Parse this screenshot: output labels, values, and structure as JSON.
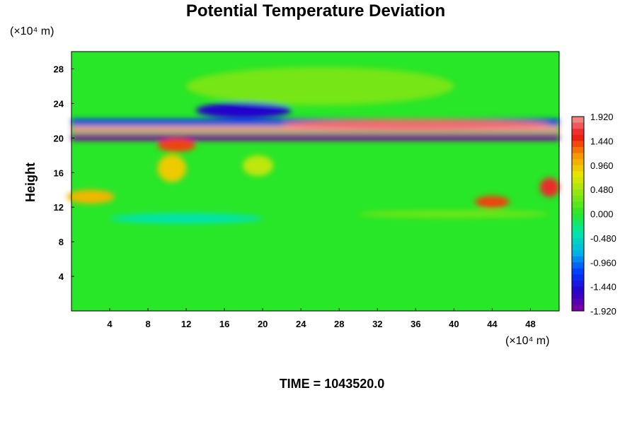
{
  "chart_data": {
    "type": "heatmap",
    "title": "Potential Temperature Deviation",
    "ylabel": "Height",
    "y_unit": "(×10⁴ m)",
    "x_unit": "(×10⁴ m)",
    "xlim": [
      0,
      51
    ],
    "ylim": [
      0,
      30
    ],
    "x_ticks": [
      "4",
      "8",
      "12",
      "16",
      "20",
      "24",
      "28",
      "32",
      "36",
      "40",
      "44",
      "48"
    ],
    "x_tick_values": [
      4,
      8,
      12,
      16,
      20,
      24,
      28,
      32,
      36,
      40,
      44,
      48
    ],
    "y_ticks": [
      "4",
      "8",
      "12",
      "16",
      "20",
      "24",
      "28"
    ],
    "y_tick_values": [
      4,
      8,
      12,
      16,
      20,
      24,
      28
    ],
    "colorbar": {
      "min": -1.92,
      "max": 1.92,
      "labels": [
        "1.920",
        "1.440",
        "0.960",
        "0.480",
        "0.000",
        "-0.480",
        "-0.960",
        "-1.440",
        "-1.920"
      ],
      "label_values": [
        1.92,
        1.44,
        0.96,
        0.48,
        0.0,
        -0.48,
        -0.96,
        -1.44,
        -1.92
      ]
    },
    "background_value": 0.0,
    "features": [
      {
        "kind": "band",
        "x0": 0,
        "x1": 51,
        "y0": 20.6,
        "y1": 21.4,
        "value": 1.92
      },
      {
        "kind": "band",
        "x0": 0,
        "x1": 51,
        "y0": 19.7,
        "y1": 20.4,
        "value": -1.92
      },
      {
        "kind": "band",
        "x0": 0,
        "x1": 51,
        "y0": 21.5,
        "y1": 22.2,
        "value": -1.2
      },
      {
        "kind": "blob",
        "x": 18,
        "y": 23.2,
        "rx": 5,
        "ry": 0.9,
        "value": -1.5
      },
      {
        "kind": "blob",
        "x": 36,
        "y": 21.6,
        "rx": 14,
        "ry": 0.6,
        "value": 1.8
      },
      {
        "kind": "blob",
        "x": 11,
        "y": 19.2,
        "rx": 2,
        "ry": 0.8,
        "value": 1.4
      },
      {
        "kind": "blob",
        "x": 10.5,
        "y": 16.5,
        "rx": 1.5,
        "ry": 1.6,
        "value": 0.9
      },
      {
        "kind": "blob",
        "x": 19.5,
        "y": 16.8,
        "rx": 1.6,
        "ry": 1.2,
        "value": 0.6
      },
      {
        "kind": "blob",
        "x": 2,
        "y": 13.2,
        "rx": 2.5,
        "ry": 0.8,
        "value": 1.0
      },
      {
        "kind": "blob",
        "x": 44,
        "y": 12.6,
        "rx": 1.8,
        "ry": 0.7,
        "value": 1.4
      },
      {
        "kind": "blob",
        "x": 50,
        "y": 14.3,
        "rx": 1,
        "ry": 1.1,
        "value": 1.6
      },
      {
        "kind": "blob",
        "x": 26,
        "y": 26,
        "rx": 14,
        "ry": 2.2,
        "value": 0.3
      },
      {
        "kind": "blob",
        "x": 12,
        "y": 10.7,
        "rx": 8,
        "ry": 0.6,
        "value": -0.4
      },
      {
        "kind": "blob",
        "x": 40,
        "y": 11.2,
        "rx": 10,
        "ry": 0.4,
        "value": 0.3
      }
    ]
  },
  "footer": {
    "time_text": "TIME = 1043520.0"
  }
}
